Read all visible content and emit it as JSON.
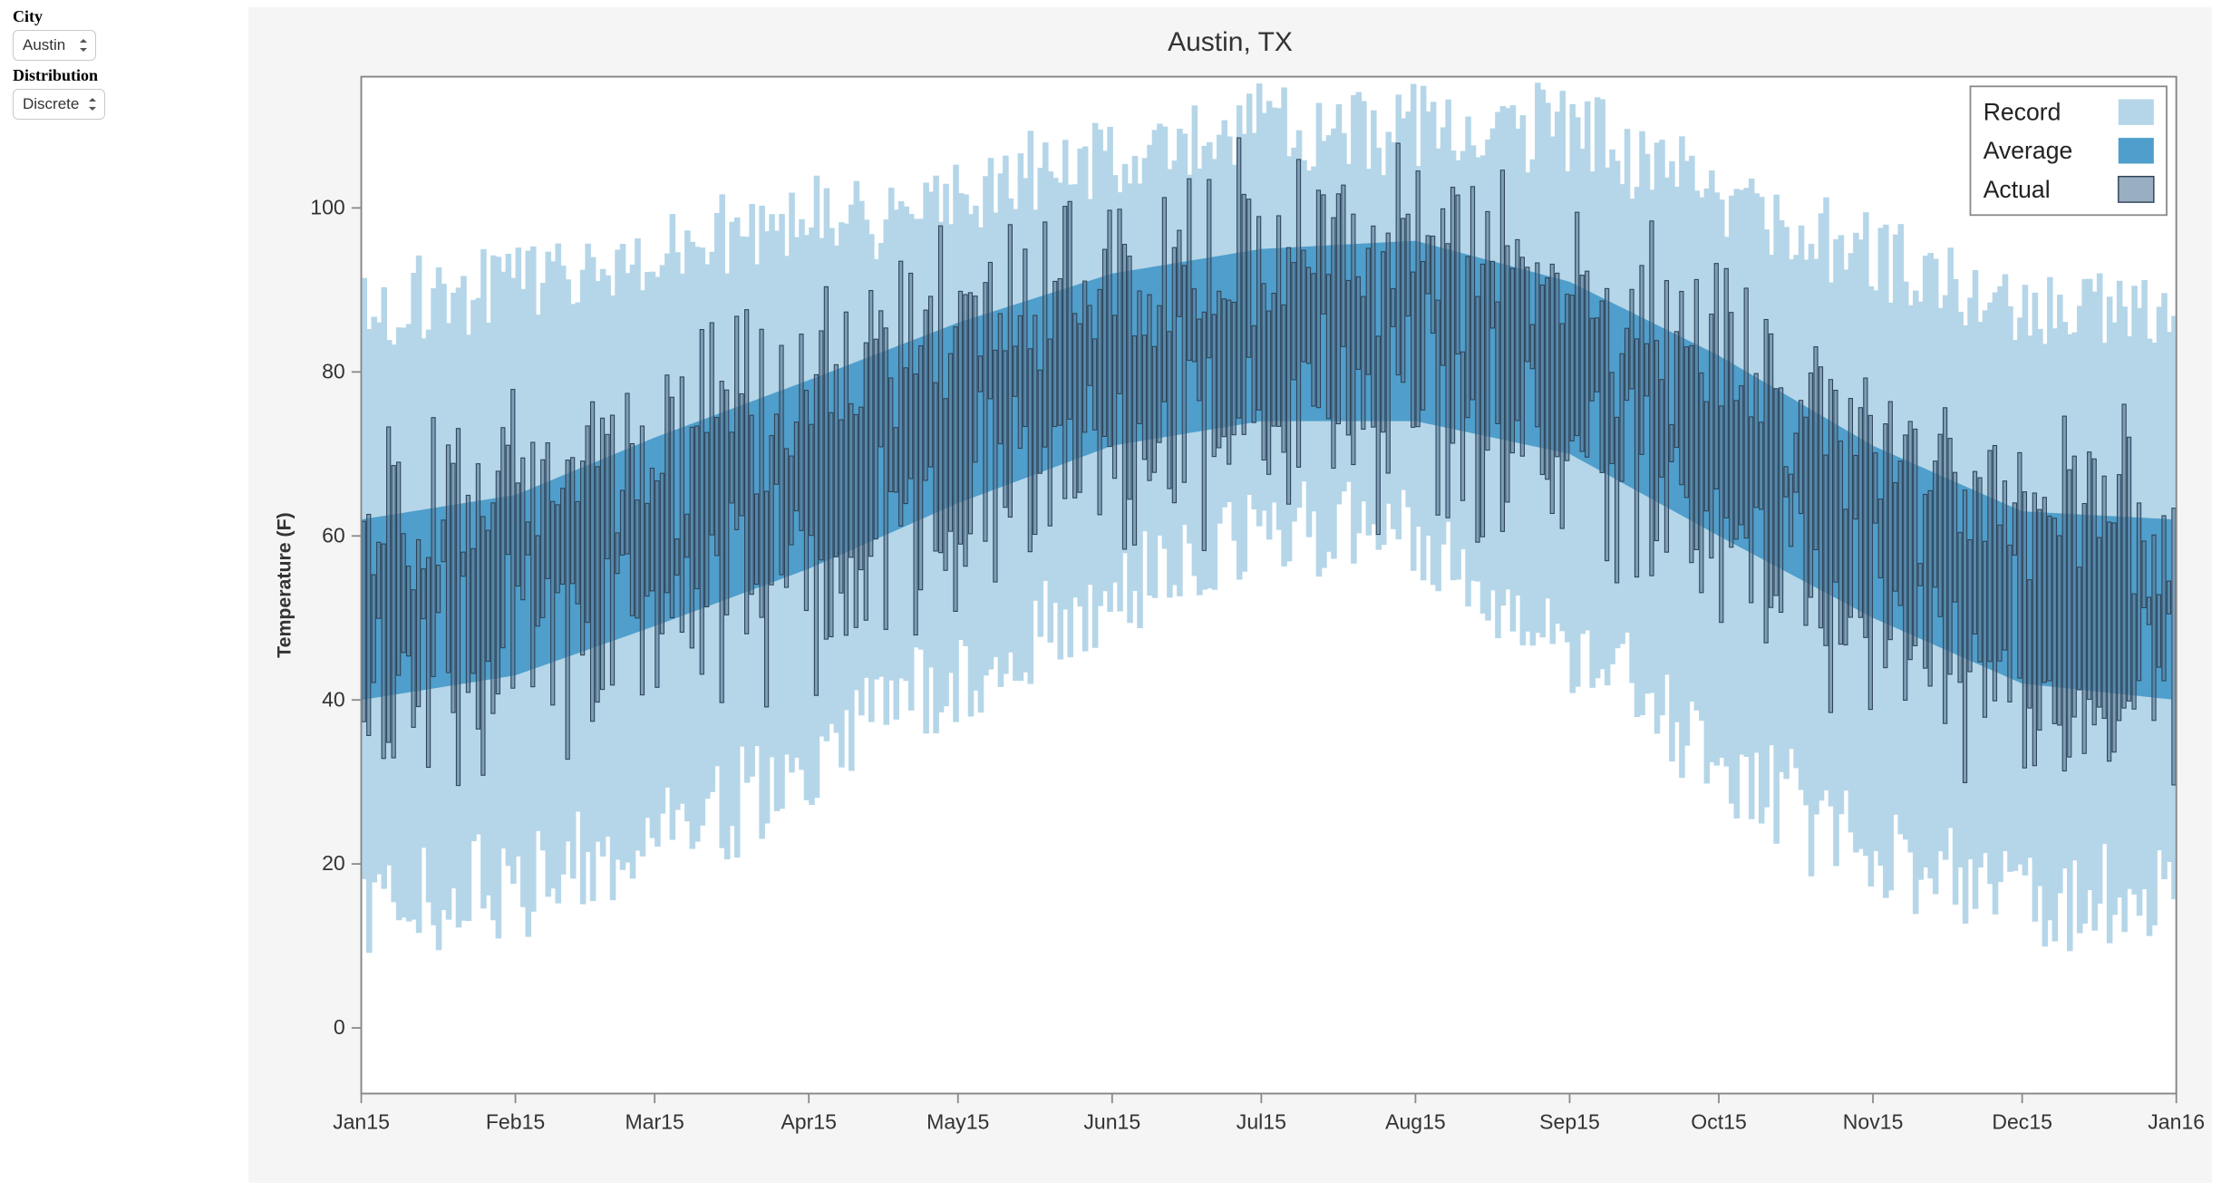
{
  "sidebar": {
    "city": {
      "label": "City",
      "value": "Austin"
    },
    "distribution": {
      "label": "Distribution",
      "value": "Discrete"
    }
  },
  "chart": {
    "type": "range-band + bar",
    "title": "Austin, TX",
    "title_fontsize": 30,
    "ylabel": "Temperature (F)",
    "label_fontsize": 12,
    "background_color": "#f5f5f5",
    "plot_bg_color": "#ffffff",
    "axis_color": "#888888",
    "tick_font_size": 13,
    "n_days": 365,
    "ylim": [
      -8,
      116
    ],
    "yticks": [
      0,
      20,
      40,
      60,
      80,
      100
    ],
    "x_tick_labels": [
      "Jan15",
      "Feb15",
      "Mar15",
      "Apr15",
      "May15",
      "Jun15",
      "Jul15",
      "Aug15",
      "Sep15",
      "Oct15",
      "Nov15",
      "Dec15",
      "Jan16"
    ],
    "month_lengths": [
      31,
      28,
      31,
      30,
      31,
      30,
      31,
      31,
      30,
      31,
      30,
      31
    ],
    "colors": {
      "record": "#b5d6e8",
      "average": "#4f9ecb",
      "actual_fill": "#5a7d99",
      "actual_fill_opacity": 0.62,
      "actual_stroke": "#2d4358"
    },
    "legend": {
      "position": "top-right",
      "items": [
        {
          "label": "Record",
          "key": "record"
        },
        {
          "label": "Average",
          "key": "average"
        },
        {
          "label": "Actual",
          "key": "actual"
        }
      ]
    },
    "series": {
      "comment": "Monthly anchor points (index 0..12 ~ month boundaries Jan15..Jan16) interpolated per-day for the three bands. Values in °F.",
      "average_low": [
        40,
        43,
        49,
        56,
        64,
        71,
        74,
        74,
        70,
        60,
        50,
        42,
        40
      ],
      "average_high": [
        62,
        65,
        72,
        79,
        86,
        92,
        95,
        96,
        91,
        82,
        71,
        63,
        62
      ],
      "record_low": [
        17,
        19,
        24,
        34,
        44,
        54,
        63,
        62,
        48,
        34,
        22,
        16,
        17
      ],
      "record_high": [
        86,
        89,
        94,
        97,
        100,
        105,
        108,
        109,
        108,
        100,
        92,
        86,
        86
      ],
      "actual_noise": {
        "amp_low": 11,
        "amp_high": 9,
        "seed": 11
      },
      "record_noise": {
        "amp_low": 6,
        "amp_high": 5,
        "seed": 29
      }
    }
  }
}
